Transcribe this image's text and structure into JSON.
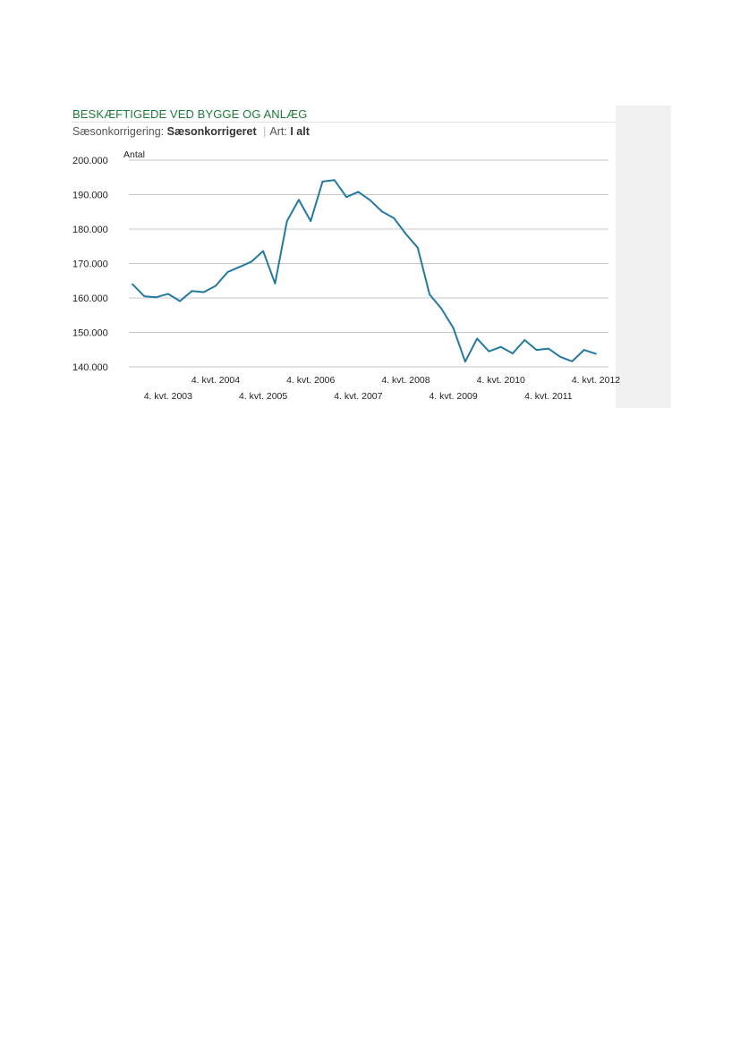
{
  "header": {
    "title": "BESKÆFTIGEDE VED BYGGE OG ANLÆG",
    "filter1_label": "Sæsonkorrigering:",
    "filter1_value": "Sæsonkorrigeret",
    "separator": "|",
    "filter2_label": "Art:",
    "filter2_value": "I alt"
  },
  "colors": {
    "title": "#1f7a3a",
    "line": "#2479a1",
    "grid": "#c8c8c8",
    "sidebar": "#f0f0f0"
  },
  "chart_data": {
    "type": "line",
    "ylabel": "Antal",
    "ylim": [
      140000,
      200000
    ],
    "yticks": [
      140000,
      150000,
      160000,
      170000,
      180000,
      190000,
      200000
    ],
    "ytick_labels": [
      "140.000",
      "150.000",
      "160.000",
      "170.000",
      "180.000",
      "190.000",
      "200.000"
    ],
    "xticks_upper": [
      "4. kvt. 2004",
      "4. kvt. 2006",
      "4. kvt. 2008",
      "4. kvt. 2010",
      "4. kvt. 2012"
    ],
    "xticks_lower": [
      "4. kvt. 2003",
      "4. kvt. 2005",
      "4. kvt. 2007",
      "4. kvt. 2009",
      "4. kvt. 2011"
    ],
    "grid": true,
    "legend": "none",
    "x": [
      "1. kvt. 2003",
      "2. kvt. 2003",
      "3. kvt. 2003",
      "4. kvt. 2003",
      "1. kvt. 2004",
      "2. kvt. 2004",
      "3. kvt. 2004",
      "4. kvt. 2004",
      "1. kvt. 2005",
      "2. kvt. 2005",
      "3. kvt. 2005",
      "4. kvt. 2005",
      "1. kvt. 2006",
      "2. kvt. 2006",
      "3. kvt. 2006",
      "4. kvt. 2006",
      "1. kvt. 2007",
      "2. kvt. 2007",
      "3. kvt. 2007",
      "4. kvt. 2007",
      "1. kvt. 2008",
      "2. kvt. 2008",
      "3. kvt. 2008",
      "4. kvt. 2008",
      "1. kvt. 2009",
      "2. kvt. 2009",
      "3. kvt. 2009",
      "4. kvt. 2009",
      "1. kvt. 2010",
      "2. kvt. 2010",
      "3. kvt. 2010",
      "4. kvt. 2010",
      "1. kvt. 2011",
      "2. kvt. 2011",
      "3. kvt. 2011",
      "4. kvt. 2011",
      "1. kvt. 2012",
      "2. kvt. 2012",
      "3. kvt. 2012",
      "4. kvt. 2012"
    ],
    "values": [
      164000,
      160500,
      160200,
      161200,
      159100,
      162000,
      161700,
      163500,
      167500,
      169000,
      170500,
      173600,
      164200,
      182300,
      188500,
      182300,
      193800,
      194200,
      189300,
      190800,
      188400,
      185100,
      183200,
      178600,
      174600,
      161000,
      156900,
      151300,
      141500,
      148200,
      144500,
      145800,
      143900,
      147800,
      144900,
      145300,
      142900,
      141600,
      144900,
      143800
    ]
  }
}
